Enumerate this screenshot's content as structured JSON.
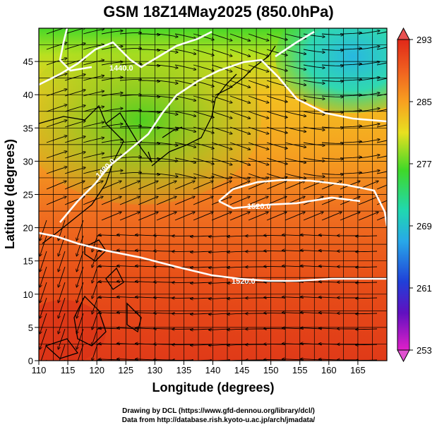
{
  "title": "GSM 18Z14May2025 (850.0hPa)",
  "xaxis": {
    "label": "Longitude (degrees)",
    "ticks": [
      110,
      115,
      120,
      125,
      130,
      135,
      140,
      145,
      150,
      155,
      160,
      165
    ],
    "range": [
      110,
      170
    ]
  },
  "yaxis": {
    "label": "Latitude  (degrees)",
    "ticks": [
      0,
      5,
      10,
      15,
      20,
      25,
      30,
      35,
      40,
      45
    ],
    "range": [
      0,
      50
    ]
  },
  "colorbar": {
    "ticks": [
      293,
      285,
      277,
      269,
      261,
      253
    ],
    "range": [
      253,
      293
    ]
  },
  "contours": [
    {
      "label": "1440.0"
    },
    {
      "label": "1480.0"
    },
    {
      "label": "1520.0"
    },
    {
      "label": "1520.0"
    }
  ],
  "credits": {
    "line1": "Drawing by DCL (https://www.gfd-dennou.org/library/dcl/)",
    "line2": "Data from http://database.rish.kyoto-u.ac.jp/arch/jmadata/"
  },
  "colors": {
    "warm": "#e8401a",
    "orange": "#f7a020",
    "green": "#40d820",
    "cyan": "#30c0d8",
    "contour": "#ffffff",
    "grid": "#000000"
  }
}
